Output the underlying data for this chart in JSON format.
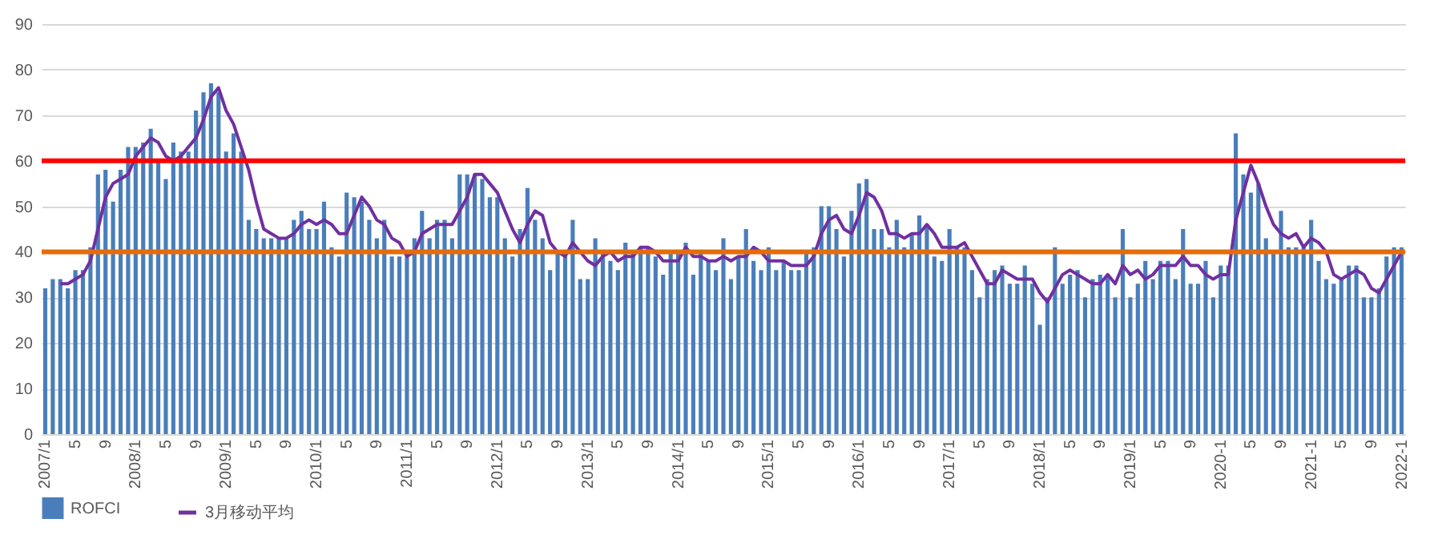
{
  "chart_data": {
    "type": "bar",
    "categories": [
      "2007/1",
      null,
      null,
      null,
      "5",
      null,
      null,
      null,
      "9",
      null,
      null,
      null,
      "2008/1",
      null,
      null,
      null,
      "5",
      null,
      null,
      null,
      "9",
      null,
      null,
      null,
      "2009/1",
      null,
      null,
      null,
      "5",
      null,
      null,
      null,
      "9",
      null,
      null,
      null,
      "2010/1",
      null,
      null,
      null,
      "5",
      null,
      null,
      null,
      "9",
      null,
      null,
      null,
      "2011/1",
      null,
      null,
      null,
      "5",
      null,
      null,
      null,
      "9",
      null,
      null,
      null,
      "2012/1",
      null,
      null,
      null,
      "5",
      null,
      null,
      null,
      "9",
      null,
      null,
      null,
      "2013/1",
      null,
      null,
      null,
      "5",
      null,
      null,
      null,
      "9",
      null,
      null,
      null,
      "2014/1",
      null,
      null,
      null,
      "5",
      null,
      null,
      null,
      "9",
      null,
      null,
      null,
      "2015/1",
      null,
      null,
      null,
      "5",
      null,
      null,
      null,
      "9",
      null,
      null,
      null,
      "2016/1",
      null,
      null,
      null,
      "5",
      null,
      null,
      null,
      "9",
      null,
      null,
      null,
      "2017/1",
      null,
      null,
      null,
      "5",
      null,
      null,
      null,
      "9",
      null,
      null,
      null,
      "2018/1",
      null,
      null,
      null,
      "5",
      null,
      null,
      null,
      "9",
      null,
      null,
      null,
      "2019/1",
      null,
      null,
      null,
      "5",
      null,
      null,
      null,
      "9",
      null,
      null,
      null,
      "2020-1",
      null,
      null,
      null,
      "5",
      null,
      null,
      null,
      "9",
      null,
      null,
      null,
      "2021-1",
      null,
      null,
      null,
      "5",
      null,
      null,
      null,
      "9",
      null,
      null,
      null,
      "2022-1"
    ],
    "series": [
      {
        "name": "ROFCI",
        "color": "#4a7ebb",
        "values": [
          32,
          34,
          34,
          32,
          36,
          36,
          41,
          57,
          58,
          51,
          58,
          63,
          63,
          64,
          67,
          60,
          56,
          64,
          62,
          62,
          71,
          75,
          77,
          75,
          62,
          66,
          62,
          47,
          45,
          43,
          43,
          43,
          43,
          47,
          49,
          45,
          45,
          51,
          41,
          39,
          53,
          52,
          51,
          47,
          43,
          47,
          39,
          39,
          39,
          43,
          49,
          43,
          47,
          47,
          43,
          57,
          57,
          57,
          56,
          52,
          52,
          43,
          39,
          45,
          54,
          47,
          43,
          36,
          40,
          40,
          47,
          34,
          34,
          43,
          40,
          38,
          36,
          42,
          40,
          41,
          41,
          39,
          35,
          40,
          40,
          42,
          35,
          40,
          38,
          36,
          43,
          34,
          39,
          45,
          38,
          36,
          41,
          36,
          38,
          36,
          36,
          40,
          41,
          50,
          50,
          45,
          39,
          49,
          55,
          56,
          45,
          45,
          41,
          47,
          41,
          44,
          48,
          46,
          39,
          38,
          45,
          41,
          41,
          36,
          30,
          34,
          36,
          37,
          33,
          33,
          37,
          33,
          24,
          30,
          41,
          33,
          35,
          36,
          30,
          34,
          35,
          35,
          30,
          45,
          30,
          33,
          38,
          34,
          38,
          38,
          34,
          45,
          33,
          33,
          38,
          30,
          37,
          37,
          66,
          57,
          53,
          55,
          43,
          40,
          49,
          41,
          41,
          41,
          47,
          38,
          34,
          33,
          34,
          37,
          37,
          30,
          30,
          32,
          39,
          41,
          41
        ]
      },
      {
        "name": "3月移动平均",
        "type": "line",
        "color": "#7030a0",
        "values": [
          null,
          null,
          33,
          33,
          34,
          35,
          38,
          45,
          52,
          55,
          56,
          57,
          61,
          63,
          65,
          64,
          61,
          60,
          61,
          63,
          65,
          69,
          74,
          76,
          71,
          68,
          63,
          58,
          51,
          45,
          44,
          43,
          43,
          44,
          46,
          47,
          46,
          47,
          46,
          44,
          44,
          48,
          52,
          50,
          47,
          46,
          43,
          42,
          39,
          40,
          44,
          45,
          46,
          46,
          46,
          49,
          52,
          57,
          57,
          55,
          53,
          49,
          45,
          42,
          46,
          49,
          48,
          42,
          40,
          39,
          42,
          40,
          38,
          37,
          39,
          40,
          38,
          39,
          39,
          41,
          41,
          40,
          38,
          38,
          38,
          41,
          39,
          39,
          38,
          38,
          39,
          38,
          39,
          39,
          41,
          40,
          38,
          38,
          38,
          37,
          37,
          37,
          39,
          44,
          47,
          48,
          45,
          44,
          48,
          53,
          52,
          49,
          44,
          44,
          43,
          44,
          44,
          46,
          44,
          41,
          41,
          41,
          42,
          39,
          36,
          33,
          33,
          36,
          35,
          34,
          34,
          34,
          31,
          29,
          32,
          35,
          36,
          35,
          34,
          33,
          33,
          35,
          33,
          37,
          35,
          36,
          34,
          35,
          37,
          37,
          37,
          39,
          37,
          37,
          35,
          34,
          35,
          35,
          47,
          53,
          59,
          55,
          50,
          46,
          44,
          43,
          44,
          41,
          43,
          42,
          40,
          35,
          34,
          35,
          36,
          35,
          32,
          31,
          34,
          37,
          40
        ]
      }
    ],
    "ylim": [
      0,
      90
    ],
    "yticks": [
      0,
      10,
      20,
      30,
      40,
      50,
      60,
      70,
      80,
      90
    ],
    "ref_lines": [
      {
        "axis": "y",
        "value": 60,
        "color": "#ff0000"
      },
      {
        "axis": "y",
        "value": 40,
        "color": "#e46c0a"
      }
    ],
    "grid": "y",
    "legend": "bottom",
    "line_style": "solid",
    "marker": "none"
  }
}
